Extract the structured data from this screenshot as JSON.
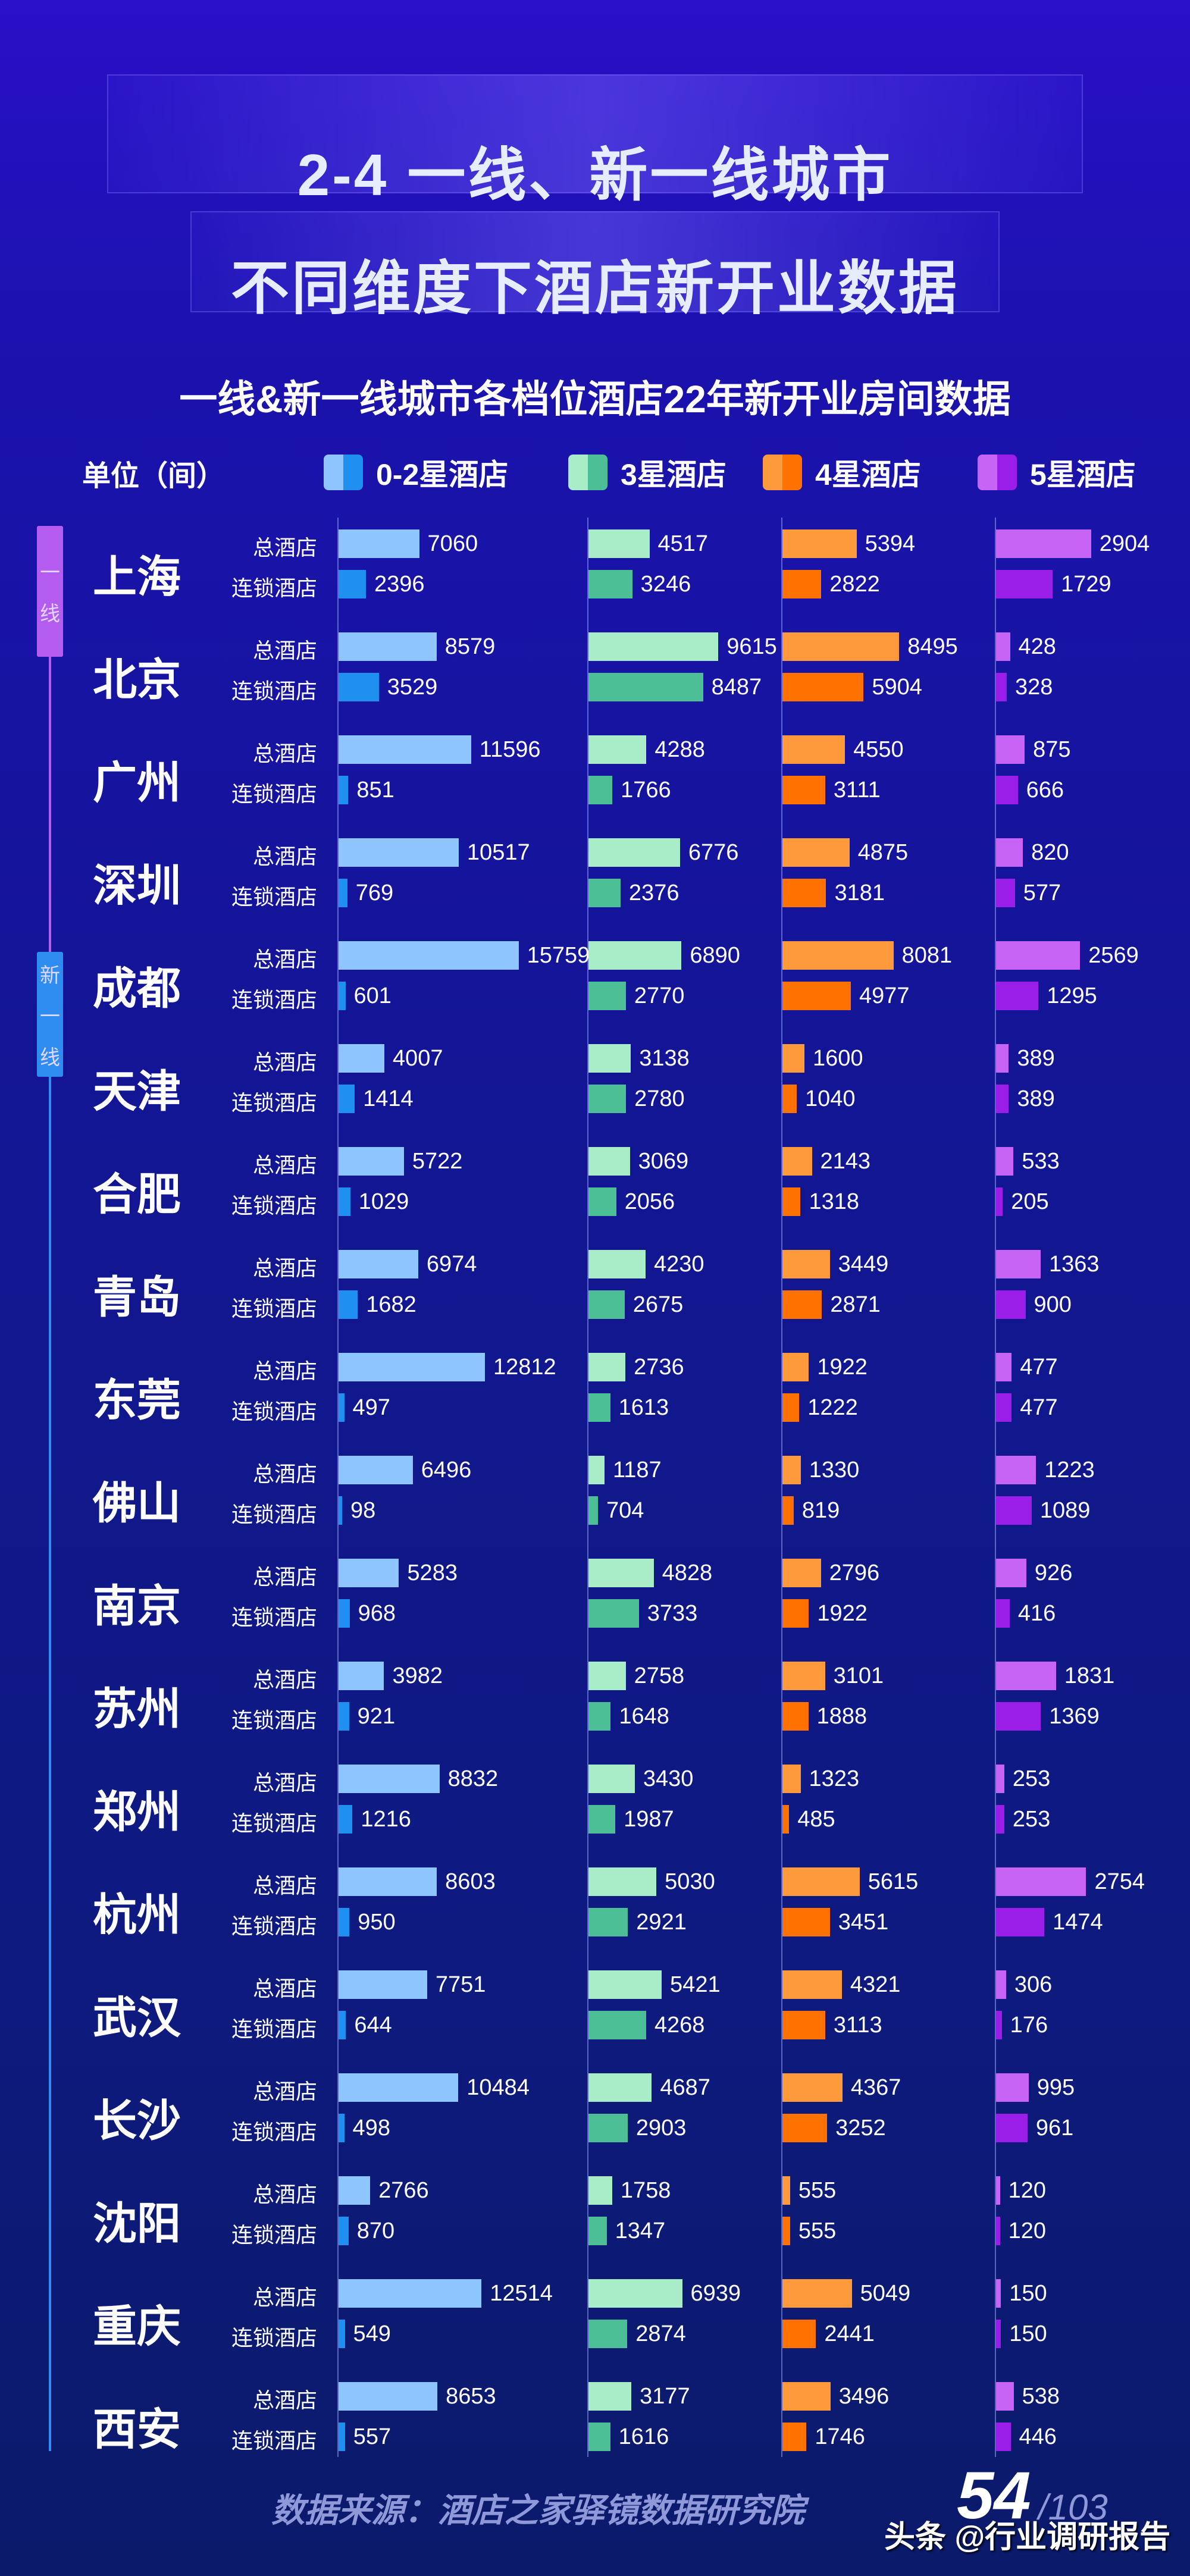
{
  "header": {
    "title_line1": "2-4  一线、新一线城市",
    "title_line2": "不同维度下酒店新开业数据"
  },
  "chart_data": {
    "type": "bar",
    "title": "一线&新一线城市各档位酒店22年新开业房间数据",
    "unit_label": "单位（间）",
    "legend": [
      {
        "name": "0-2星酒店",
        "colors": [
          "#8ec5ff",
          "#1f8ff0"
        ]
      },
      {
        "name": "3星酒店",
        "colors": [
          "#a8ecc8",
          "#4cbf96"
        ]
      },
      {
        "name": "4星酒店",
        "colors": [
          "#ff9a3c",
          "#ff7100"
        ]
      },
      {
        "name": "5星酒店",
        "colors": [
          "#c764f5",
          "#9a1ee8"
        ]
      }
    ],
    "row_labels": [
      "总酒店",
      "连锁酒店"
    ],
    "tiers": [
      {
        "name": "一线",
        "chars": [
          "一",
          "线"
        ],
        "color": "#b45cf0"
      },
      {
        "name": "新一线",
        "chars": [
          "新",
          "一",
          "线"
        ],
        "color": "#2f8cf0"
      }
    ],
    "cities": [
      {
        "name": "上海",
        "tier": 0,
        "total": [
          7060,
          4517,
          5394,
          2904
        ],
        "chain": [
          2396,
          3246,
          2822,
          1729
        ]
      },
      {
        "name": "北京",
        "tier": 0,
        "total": [
          8579,
          9615,
          8495,
          428
        ],
        "chain": [
          3529,
          8487,
          5904,
          328
        ]
      },
      {
        "name": "广州",
        "tier": 0,
        "total": [
          11596,
          4288,
          4550,
          875
        ],
        "chain": [
          851,
          1766,
          3111,
          666
        ]
      },
      {
        "name": "深圳",
        "tier": 0,
        "total": [
          10517,
          6776,
          4875,
          820
        ],
        "chain": [
          769,
          2376,
          3181,
          577
        ]
      },
      {
        "name": "成都",
        "tier": 1,
        "total": [
          15759,
          6890,
          8081,
          2569
        ],
        "chain": [
          601,
          2770,
          4977,
          1295
        ]
      },
      {
        "name": "天津",
        "tier": 1,
        "total": [
          4007,
          3138,
          1600,
          389
        ],
        "chain": [
          1414,
          2780,
          1040,
          389
        ]
      },
      {
        "name": "合肥",
        "tier": 1,
        "total": [
          5722,
          3069,
          2143,
          533
        ],
        "chain": [
          1029,
          2056,
          1318,
          205
        ]
      },
      {
        "name": "青岛",
        "tier": 1,
        "total": [
          6974,
          4230,
          3449,
          1363
        ],
        "chain": [
          1682,
          2675,
          2871,
          900
        ]
      },
      {
        "name": "东莞",
        "tier": 1,
        "total": [
          12812,
          2736,
          1922,
          477
        ],
        "chain": [
          497,
          1613,
          1222,
          477
        ]
      },
      {
        "name": "佛山",
        "tier": 1,
        "total": [
          6496,
          1187,
          1330,
          1223
        ],
        "chain": [
          98,
          704,
          819,
          1089
        ]
      },
      {
        "name": "南京",
        "tier": 1,
        "total": [
          5283,
          4828,
          2796,
          926
        ],
        "chain": [
          968,
          3733,
          1922,
          416
        ]
      },
      {
        "name": "苏州",
        "tier": 1,
        "total": [
          3982,
          2758,
          3101,
          1831
        ],
        "chain": [
          921,
          1648,
          1888,
          1369
        ]
      },
      {
        "name": "郑州",
        "tier": 1,
        "total": [
          8832,
          3430,
          1323,
          253
        ],
        "chain": [
          1216,
          1987,
          485,
          253
        ]
      },
      {
        "name": "杭州",
        "tier": 1,
        "total": [
          8603,
          5030,
          5615,
          2754
        ],
        "chain": [
          950,
          2921,
          3451,
          1474
        ]
      },
      {
        "name": "武汉",
        "tier": 1,
        "total": [
          7751,
          5421,
          4321,
          306
        ],
        "chain": [
          644,
          4268,
          3113,
          176
        ]
      },
      {
        "name": "长沙",
        "tier": 1,
        "total": [
          10484,
          4687,
          4367,
          995
        ],
        "chain": [
          498,
          2903,
          3252,
          961
        ]
      },
      {
        "name": "沈阳",
        "tier": 1,
        "total": [
          2766,
          1758,
          555,
          120
        ],
        "chain": [
          870,
          1347,
          555,
          120
        ]
      },
      {
        "name": "重庆",
        "tier": 1,
        "total": [
          12514,
          6939,
          5049,
          150
        ],
        "chain": [
          549,
          2874,
          2441,
          150
        ]
      },
      {
        "name": "西安",
        "tier": 1,
        "total": [
          8653,
          3177,
          3496,
          538
        ],
        "chain": [
          557,
          1616,
          1746,
          446
        ]
      }
    ]
  },
  "footer": {
    "source": "数据来源：酒店之家驿镜数据研究院",
    "page": "54",
    "total_pages": "/103",
    "watermark": "头条 @行业调研报告"
  }
}
